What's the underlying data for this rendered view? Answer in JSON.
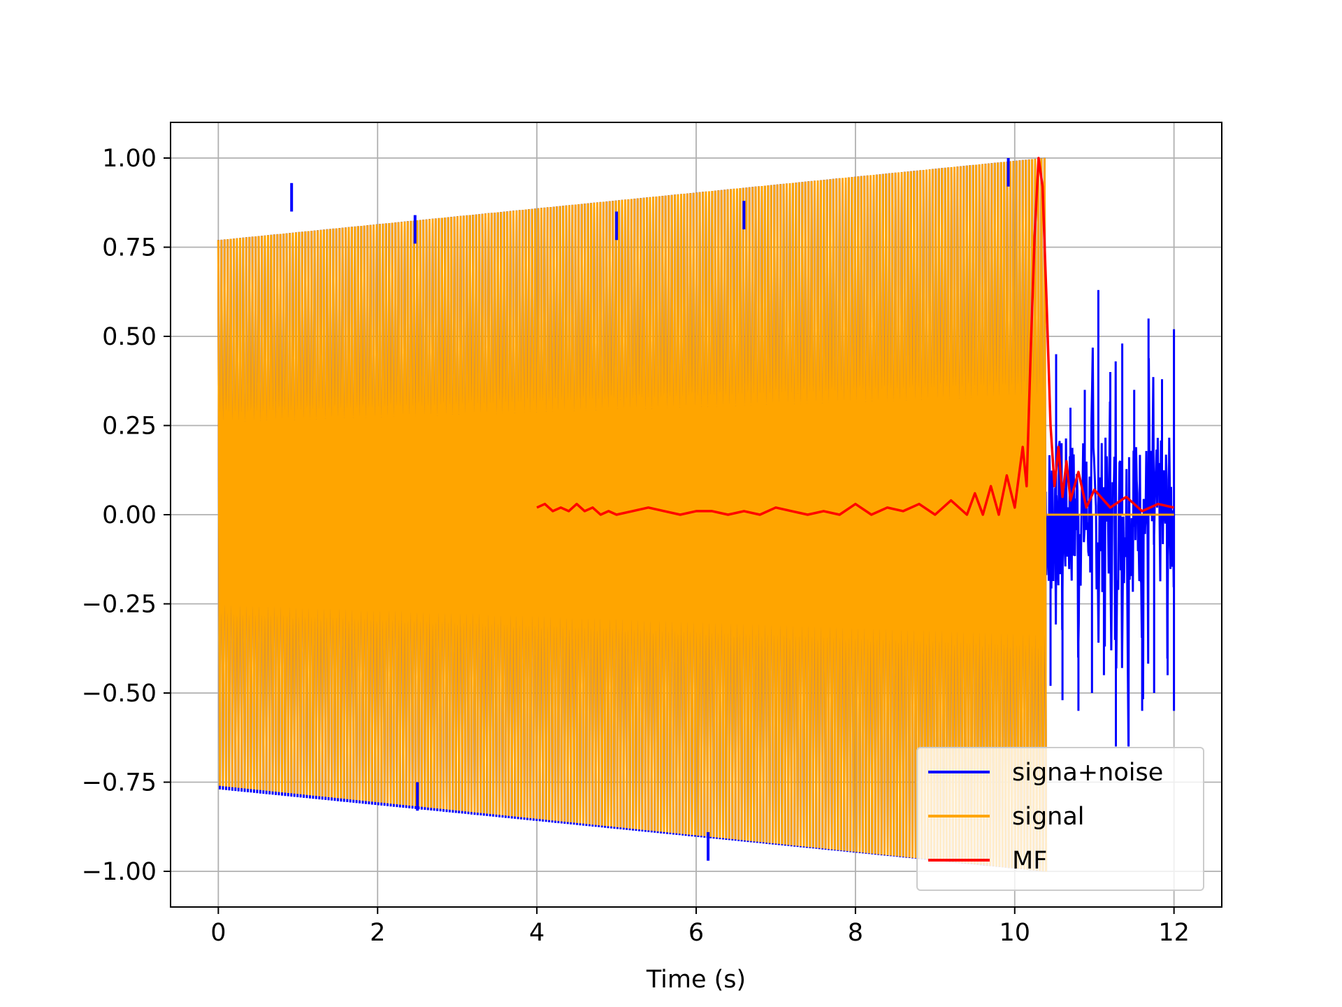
{
  "chart_data": {
    "type": "line",
    "title": "",
    "xlabel": "Time (s)",
    "ylabel": "",
    "xlim": [
      -0.6,
      12.6
    ],
    "ylim": [
      -1.1,
      1.1
    ],
    "x_ticks": [
      0,
      2,
      4,
      6,
      8,
      10,
      12
    ],
    "x_tick_labels": [
      "0",
      "2",
      "4",
      "6",
      "8",
      "10",
      "12"
    ],
    "y_ticks": [
      1.0,
      0.75,
      0.5,
      0.25,
      0.0,
      -0.25,
      -0.5,
      -0.75,
      -1.0
    ],
    "y_tick_labels": [
      "1.00",
      "0.75",
      "0.50",
      "0.25",
      "0.00",
      "−0.25",
      "−0.50",
      "−0.75",
      "−1.00"
    ],
    "grid": true,
    "legend_position": "lower right",
    "series": [
      {
        "name": "signa+noise",
        "color": "#0000ff",
        "envelope_upper": [
          [
            0.0,
            0.77
          ],
          [
            10.35,
            1.0
          ]
        ],
        "envelope_lower": [
          [
            0.0,
            -0.77
          ],
          [
            10.35,
            -1.0
          ]
        ],
        "spikes": [
          [
            0.92,
            0.93
          ],
          [
            2.47,
            0.84
          ],
          [
            2.5,
            -0.83
          ],
          [
            5.0,
            0.85
          ],
          [
            6.15,
            -0.97
          ],
          [
            6.6,
            0.88
          ],
          [
            9.92,
            1.0
          ]
        ],
        "noise_tail": [
          [
            10.38,
            0.53
          ],
          [
            10.45,
            -0.48
          ],
          [
            10.52,
            0.45
          ],
          [
            10.6,
            -0.52
          ],
          [
            10.7,
            0.3
          ],
          [
            10.8,
            -0.55
          ],
          [
            10.88,
            0.35
          ],
          [
            10.97,
            -0.5
          ],
          [
            11.05,
            0.63
          ],
          [
            11.12,
            -0.45
          ],
          [
            11.2,
            0.4
          ],
          [
            11.27,
            -0.65
          ],
          [
            11.35,
            0.48
          ],
          [
            11.43,
            -0.65
          ],
          [
            11.5,
            0.35
          ],
          [
            11.6,
            -0.55
          ],
          [
            11.68,
            0.55
          ],
          [
            11.75,
            -0.5
          ],
          [
            11.85,
            0.38
          ],
          [
            11.92,
            -0.45
          ],
          [
            12.0,
            0.52
          ],
          [
            12.0,
            -0.55
          ]
        ]
      },
      {
        "name": "signal",
        "color": "#ffa500",
        "envelope_upper": [
          [
            0.0,
            0.77
          ],
          [
            10.35,
            1.0
          ]
        ],
        "envelope_lower": [
          [
            0.0,
            -0.76
          ],
          [
            10.35,
            -1.0
          ]
        ],
        "end_time": 10.4,
        "after_end_value": 0.0,
        "tail_end": 12.0
      },
      {
        "name": "MF",
        "color": "#ff0000",
        "x": [
          4.0,
          4.1,
          4.2,
          4.3,
          4.4,
          4.5,
          4.6,
          4.7,
          4.8,
          4.9,
          5.0,
          5.2,
          5.4,
          5.6,
          5.8,
          6.0,
          6.2,
          6.4,
          6.6,
          6.8,
          7.0,
          7.2,
          7.4,
          7.6,
          7.8,
          8.0,
          8.2,
          8.4,
          8.6,
          8.8,
          9.0,
          9.2,
          9.4,
          9.5,
          9.6,
          9.7,
          9.8,
          9.9,
          10.0,
          10.1,
          10.15,
          10.2,
          10.25,
          10.3,
          10.35,
          10.4,
          10.45,
          10.5,
          10.55,
          10.6,
          10.65,
          10.7,
          10.8,
          10.9,
          11.0,
          11.2,
          11.4,
          11.6,
          11.8,
          12.0
        ],
        "y": [
          0.02,
          0.03,
          0.01,
          0.02,
          0.01,
          0.03,
          0.01,
          0.02,
          0.0,
          0.01,
          0.0,
          0.01,
          0.02,
          0.01,
          0.0,
          0.01,
          0.01,
          0.0,
          0.01,
          0.0,
          0.02,
          0.01,
          0.0,
          0.01,
          0.0,
          0.03,
          0.0,
          0.02,
          0.01,
          0.03,
          0.0,
          0.04,
          0.0,
          0.06,
          0.0,
          0.08,
          0.0,
          0.11,
          0.02,
          0.19,
          0.08,
          0.45,
          0.78,
          1.0,
          0.92,
          0.6,
          0.25,
          0.08,
          0.19,
          0.05,
          0.15,
          0.04,
          0.12,
          0.02,
          0.07,
          0.02,
          0.05,
          0.01,
          0.03,
          0.02
        ]
      }
    ]
  }
}
